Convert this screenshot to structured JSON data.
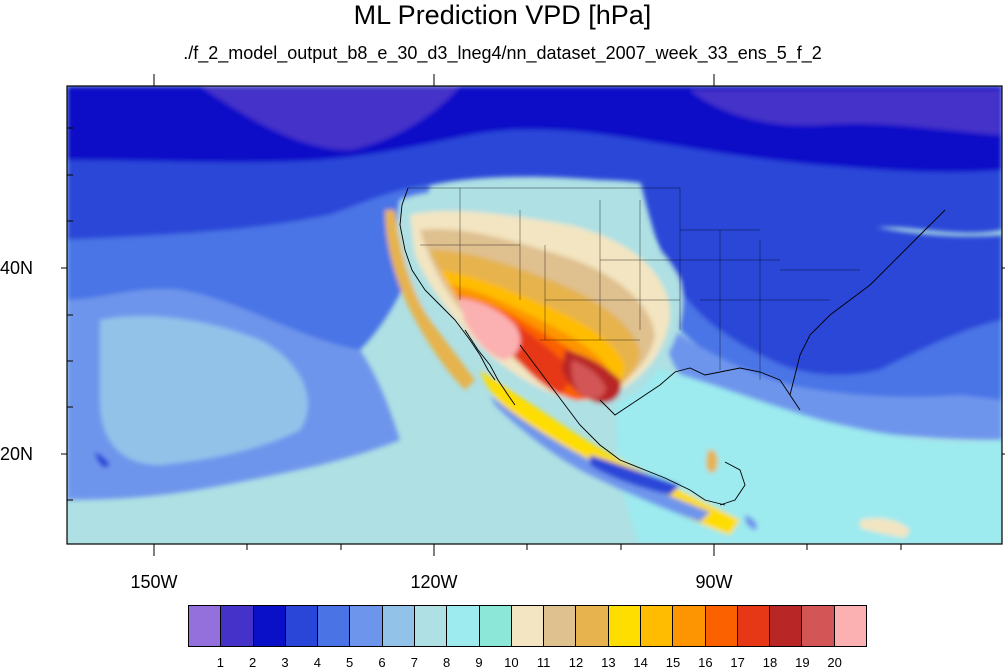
{
  "title": "ML Prediction VPD [hPa]",
  "subtitle": "./f_2_model_output_b8_e_30_d3_lneg4/nn_dataset_2007_week_33_ens_5_f_2",
  "axes": {
    "lat_labels": [
      "40N",
      "20N"
    ],
    "lon_labels": [
      "150W",
      "120W",
      "90W"
    ]
  },
  "colorbar": {
    "labels": [
      "1",
      "2",
      "3",
      "4",
      "5",
      "6",
      "7",
      "8",
      "9",
      "10",
      "11",
      "12",
      "13",
      "14",
      "15",
      "16",
      "17",
      "18",
      "19",
      "20"
    ],
    "colors": [
      "#9370db",
      "#4533c9",
      "#0a10c8",
      "#2a46d8",
      "#4a74e6",
      "#6e95ec",
      "#93c2e9",
      "#aee0e4",
      "#9deaef",
      "#8ce7d9",
      "#f3e5c1",
      "#dfc08f",
      "#e6b34e",
      "#fedd00",
      "#ffbc00",
      "#fd9402",
      "#fc6100",
      "#e63716",
      "#b92626",
      "#d35555",
      "#fbb1b1"
    ]
  }
}
